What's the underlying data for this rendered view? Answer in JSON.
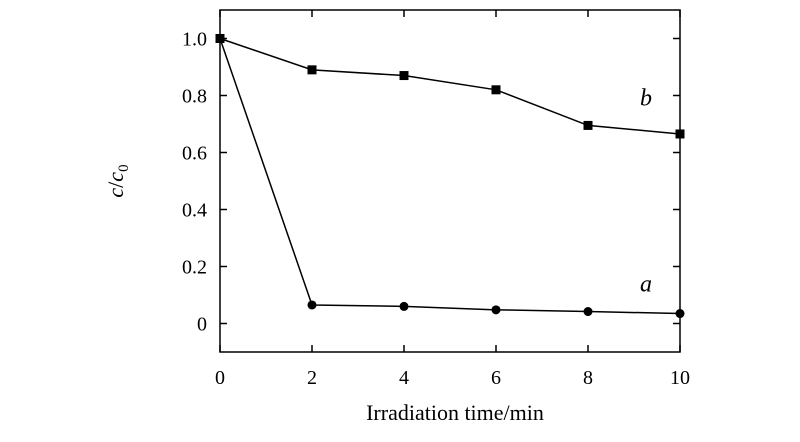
{
  "chart_data": {
    "type": "line",
    "title": "",
    "xlabel": "Irradiation time/min",
    "ylabel": {
      "italic_c": "c",
      "slash": "/",
      "italic_c2": "c",
      "subscript": "0"
    },
    "xlim": [
      0,
      10
    ],
    "ylim": [
      -0.1,
      1.1
    ],
    "x_ticks": [
      0,
      2,
      4,
      6,
      8,
      10
    ],
    "x_tick_labels": [
      "0",
      "2",
      "4",
      "6",
      "8",
      "10"
    ],
    "y_ticks": [
      0,
      0.2,
      0.4,
      0.6,
      0.8,
      1.0
    ],
    "y_tick_labels": [
      "0",
      "0.2",
      "0.4",
      "0.6",
      "0.8",
      "1.0"
    ],
    "grid": false,
    "series": [
      {
        "name": "a",
        "marker": "circle",
        "x": [
          0,
          2,
          4,
          6,
          8,
          10
        ],
        "values": [
          1.0,
          0.065,
          0.06,
          0.048,
          0.042,
          0.035
        ]
      },
      {
        "name": "b",
        "marker": "square",
        "x": [
          0,
          2,
          4,
          6,
          8,
          10
        ],
        "values": [
          1.0,
          0.89,
          0.87,
          0.82,
          0.695,
          0.665
        ]
      }
    ]
  }
}
